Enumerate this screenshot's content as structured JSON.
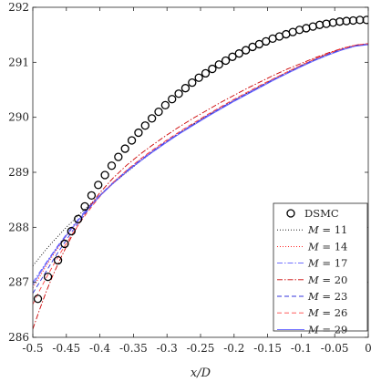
{
  "chart_data": {
    "type": "line",
    "title": "",
    "xlabel": "x/D",
    "ylabel": "",
    "xlim": [
      -0.5,
      0
    ],
    "ylim": [
      286,
      292
    ],
    "grid": false,
    "legend_position": "bottom-right",
    "xticks": [
      -0.5,
      -0.45,
      -0.4,
      -0.35,
      -0.3,
      -0.25,
      -0.2,
      -0.15,
      -0.1,
      -0.05,
      0
    ],
    "xtick_labels": [
      "-0.5",
      "-0.45",
      "-0.4",
      "-0.35",
      "-0.3",
      "-0.25",
      "-0.2",
      "-0.15",
      "-0.1",
      "-0.05",
      "0"
    ],
    "yticks": [
      286,
      287,
      288,
      289,
      290,
      291,
      292
    ],
    "ytick_labels": [
      "286",
      "287",
      "288",
      "289",
      "290",
      "291",
      "292"
    ],
    "series": [
      {
        "name": "DSMC",
        "type": "scatter",
        "marker": "circle",
        "color": "#000000",
        "x": [
          -0.4925,
          -0.4775,
          -0.4625,
          -0.4525,
          -0.4425,
          -0.4325,
          -0.4225,
          -0.4125,
          -0.4025,
          -0.3925,
          -0.3825,
          -0.3725,
          -0.3625,
          -0.3525,
          -0.3425,
          -0.3325,
          -0.3225,
          -0.3125,
          -0.3025,
          -0.2925,
          -0.2825,
          -0.2725,
          -0.2625,
          -0.2525,
          -0.2425,
          -0.2325,
          -0.2225,
          -0.2125,
          -0.2025,
          -0.1925,
          -0.1825,
          -0.1725,
          -0.1625,
          -0.1525,
          -0.1425,
          -0.1325,
          -0.1225,
          -0.1125,
          -0.1025,
          -0.0925,
          -0.0825,
          -0.0725,
          -0.0625,
          -0.0525,
          -0.0425,
          -0.0325,
          -0.0225,
          -0.0125,
          -0.0025
        ],
        "y": [
          286.7,
          287.1,
          287.4,
          287.7,
          287.93,
          288.15,
          288.38,
          288.58,
          288.77,
          288.95,
          289.12,
          289.28,
          289.43,
          289.58,
          289.72,
          289.85,
          289.98,
          290.1,
          290.22,
          290.33,
          290.43,
          290.53,
          290.63,
          290.72,
          290.8,
          290.88,
          290.96,
          291.03,
          291.1,
          291.16,
          291.22,
          291.28,
          291.33,
          291.38,
          291.43,
          291.47,
          291.51,
          291.55,
          291.59,
          291.62,
          291.65,
          291.68,
          291.7,
          291.72,
          291.74,
          291.75,
          291.76,
          291.77,
          291.77
        ]
      },
      {
        "name": "M = 11",
        "label_var": "M",
        "label_op": "=",
        "label_val": "11",
        "style": "dotted",
        "color": "#000000",
        "x": [
          -0.5,
          -0.49,
          -0.48,
          -0.47,
          -0.46,
          -0.45,
          -0.44,
          -0.43,
          -0.42,
          -0.41,
          -0.4,
          -0.38,
          -0.36,
          -0.34,
          -0.32,
          -0.3,
          -0.28,
          -0.26,
          -0.24,
          -0.22,
          -0.2,
          -0.18,
          -0.16,
          -0.14,
          -0.12,
          -0.1,
          -0.08,
          -0.06,
          -0.04,
          -0.02,
          0
        ],
        "y": [
          287.3,
          287.45,
          287.6,
          287.74,
          287.87,
          288.0,
          288.12,
          288.24,
          288.36,
          288.47,
          288.58,
          288.8,
          289.0,
          289.2,
          289.38,
          289.55,
          289.72,
          289.88,
          290.03,
          290.17,
          290.31,
          290.44,
          290.57,
          290.7,
          290.82,
          290.94,
          291.05,
          291.15,
          291.24,
          291.3,
          291.33
        ]
      },
      {
        "name": "M = 14",
        "label_var": "M",
        "label_op": "=",
        "label_val": "14",
        "style": "dotted",
        "color": "#ff0000",
        "x": [
          -0.5,
          -0.49,
          -0.48,
          -0.47,
          -0.46,
          -0.45,
          -0.44,
          -0.43,
          -0.42,
          -0.41,
          -0.4,
          -0.38,
          -0.36,
          -0.34,
          -0.32,
          -0.3,
          -0.28,
          -0.26,
          -0.24,
          -0.22,
          -0.2,
          -0.18,
          -0.16,
          -0.14,
          -0.12,
          -0.1,
          -0.08,
          -0.06,
          -0.04,
          -0.02,
          0
        ],
        "y": [
          286.9,
          287.1,
          287.3,
          287.49,
          287.67,
          287.84,
          288.0,
          288.16,
          288.31,
          288.45,
          288.58,
          288.82,
          289.03,
          289.23,
          289.41,
          289.58,
          289.74,
          289.89,
          290.04,
          290.18,
          290.32,
          290.45,
          290.58,
          290.71,
          290.83,
          290.95,
          291.06,
          291.16,
          291.25,
          291.31,
          291.34
        ]
      },
      {
        "name": "M = 17",
        "label_var": "M",
        "label_op": "=",
        "label_val": "17",
        "style": "dashdot",
        "color": "#5a5aff",
        "x": [
          -0.5,
          -0.49,
          -0.48,
          -0.47,
          -0.46,
          -0.45,
          -0.44,
          -0.43,
          -0.42,
          -0.41,
          -0.4,
          -0.38,
          -0.36,
          -0.34,
          -0.32,
          -0.3,
          -0.28,
          -0.26,
          -0.24,
          -0.22,
          -0.2,
          -0.18,
          -0.16,
          -0.14,
          -0.12,
          -0.1,
          -0.08,
          -0.06,
          -0.04,
          -0.02,
          0
        ],
        "y": [
          287.0,
          287.18,
          287.36,
          287.54,
          287.71,
          287.87,
          288.03,
          288.18,
          288.33,
          288.46,
          288.59,
          288.82,
          289.03,
          289.22,
          289.4,
          289.57,
          289.73,
          289.88,
          290.03,
          290.17,
          290.31,
          290.44,
          290.57,
          290.7,
          290.82,
          290.94,
          291.05,
          291.15,
          291.24,
          291.3,
          291.33
        ]
      },
      {
        "name": "M = 20",
        "label_var": "M",
        "label_op": "=",
        "label_val": "20",
        "style": "dashdot",
        "color": "#cc0000",
        "x": [
          -0.5,
          -0.49,
          -0.48,
          -0.47,
          -0.46,
          -0.45,
          -0.44,
          -0.43,
          -0.42,
          -0.41,
          -0.4,
          -0.38,
          -0.36,
          -0.34,
          -0.32,
          -0.3,
          -0.28,
          -0.26,
          -0.24,
          -0.22,
          -0.2,
          -0.18,
          -0.16,
          -0.14,
          -0.12,
          -0.1,
          -0.08,
          -0.06,
          -0.04,
          -0.02,
          0
        ],
        "y": [
          286.15,
          286.5,
          286.83,
          287.13,
          287.4,
          287.65,
          287.88,
          288.09,
          288.29,
          288.47,
          288.63,
          288.9,
          289.13,
          289.33,
          289.51,
          289.68,
          289.84,
          289.99,
          290.13,
          290.27,
          290.4,
          290.53,
          290.65,
          290.77,
          290.88,
          290.98,
          291.08,
          291.17,
          291.25,
          291.31,
          291.34
        ]
      },
      {
        "name": "M = 23",
        "label_var": "M",
        "label_op": "=",
        "label_val": "23",
        "style": "dashed",
        "color": "#3333dd",
        "x": [
          -0.5,
          -0.49,
          -0.48,
          -0.47,
          -0.46,
          -0.45,
          -0.44,
          -0.43,
          -0.42,
          -0.41,
          -0.4,
          -0.38,
          -0.36,
          -0.34,
          -0.32,
          -0.3,
          -0.28,
          -0.26,
          -0.24,
          -0.22,
          -0.2,
          -0.18,
          -0.16,
          -0.14,
          -0.12,
          -0.1,
          -0.08,
          -0.06,
          -0.04,
          -0.02,
          0
        ],
        "y": [
          286.8,
          287.0,
          287.2,
          287.4,
          287.59,
          287.77,
          287.95,
          288.12,
          288.28,
          288.43,
          288.57,
          288.81,
          289.02,
          289.21,
          289.39,
          289.56,
          289.72,
          289.87,
          290.02,
          290.16,
          290.3,
          290.43,
          290.56,
          290.69,
          290.81,
          290.93,
          291.04,
          291.14,
          291.23,
          291.3,
          291.33
        ]
      },
      {
        "name": "M = 26",
        "label_var": "M",
        "label_op": "=",
        "label_val": "26",
        "style": "dashed",
        "color": "#ff4444",
        "x": [
          -0.5,
          -0.49,
          -0.48,
          -0.47,
          -0.46,
          -0.45,
          -0.44,
          -0.43,
          -0.42,
          -0.41,
          -0.4,
          -0.38,
          -0.36,
          -0.34,
          -0.32,
          -0.3,
          -0.28,
          -0.26,
          -0.24,
          -0.22,
          -0.2,
          -0.18,
          -0.16,
          -0.14,
          -0.12,
          -0.1,
          -0.08,
          -0.06,
          -0.04,
          -0.02,
          0
        ],
        "y": [
          286.6,
          286.85,
          287.08,
          287.3,
          287.51,
          287.71,
          287.9,
          288.08,
          288.25,
          288.41,
          288.56,
          288.82,
          289.04,
          289.24,
          289.42,
          289.59,
          289.75,
          289.9,
          290.05,
          290.19,
          290.33,
          290.46,
          290.59,
          290.71,
          290.83,
          290.95,
          291.06,
          291.16,
          291.24,
          291.31,
          291.34
        ]
      },
      {
        "name": "M = 29",
        "label_var": "M",
        "label_op": "=",
        "label_val": "29",
        "style": "solid",
        "color": "#6060ff",
        "x": [
          -0.5,
          -0.49,
          -0.48,
          -0.47,
          -0.46,
          -0.45,
          -0.44,
          -0.43,
          -0.42,
          -0.41,
          -0.4,
          -0.38,
          -0.36,
          -0.34,
          -0.32,
          -0.3,
          -0.28,
          -0.26,
          -0.24,
          -0.22,
          -0.2,
          -0.18,
          -0.16,
          -0.14,
          -0.12,
          -0.1,
          -0.08,
          -0.06,
          -0.04,
          -0.02,
          0
        ],
        "y": [
          286.95,
          287.15,
          287.34,
          287.52,
          287.69,
          287.85,
          288.01,
          288.16,
          288.3,
          288.44,
          288.57,
          288.8,
          289.01,
          289.2,
          289.38,
          289.55,
          289.71,
          289.86,
          290.01,
          290.15,
          290.29,
          290.42,
          290.55,
          290.68,
          290.8,
          290.92,
          291.03,
          291.13,
          291.22,
          291.29,
          291.32
        ]
      }
    ]
  }
}
